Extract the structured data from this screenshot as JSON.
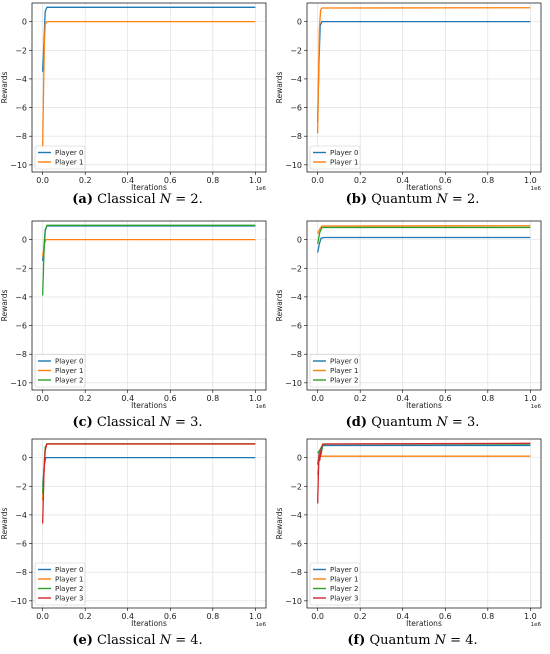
{
  "colors": {
    "player_0": "#1f77b4",
    "player_1": "#ff7f0e",
    "player_2": "#2ca02c",
    "player_3": "#d62728",
    "grid": "#dcdcdc"
  },
  "chart_data": [
    {
      "type": "line",
      "panel": "a",
      "caption": {
        "label": "(a)",
        "text": "Classical",
        "n": "N",
        "eq": " = 2."
      },
      "xlabel": "Iterations",
      "ylabel": "Rewards",
      "x_scale_note": "1e6",
      "xlim": [
        -0.05,
        1.05
      ],
      "ylim": [
        -10.5,
        1.3
      ],
      "xticks": [
        0.0,
        0.2,
        0.4,
        0.6,
        0.8,
        1.0
      ],
      "yticks": [
        -10,
        -8,
        -6,
        -4,
        -2,
        0
      ],
      "grid": true,
      "legend": "lower-left",
      "series": [
        {
          "name": "Player 0",
          "color": "#1f77b4",
          "points": [
            [
              0,
              -3.5
            ],
            [
              0.006,
              -1.5
            ],
            [
              0.012,
              0.7
            ],
            [
              0.02,
              1.0
            ],
            [
              1.0,
              1.0
            ]
          ]
        },
        {
          "name": "Player 1",
          "color": "#ff7f0e",
          "points": [
            [
              0,
              -8.8
            ],
            [
              0.004,
              -5.0
            ],
            [
              0.008,
              -1.5
            ],
            [
              0.012,
              -0.2
            ],
            [
              0.02,
              0.0
            ],
            [
              1.0,
              0.0
            ]
          ]
        }
      ]
    },
    {
      "type": "line",
      "panel": "b",
      "caption": {
        "label": "(b)",
        "text": "Quantum",
        "n": "N",
        "eq": " = 2."
      },
      "xlabel": "Iterations",
      "ylabel": "Rewards",
      "x_scale_note": "1e6",
      "xlim": [
        -0.05,
        1.05
      ],
      "ylim": [
        -10.5,
        1.3
      ],
      "xticks": [
        0.0,
        0.2,
        0.4,
        0.6,
        0.8,
        1.0
      ],
      "yticks": [
        -10,
        -8,
        -6,
        -4,
        -2,
        0
      ],
      "grid": true,
      "legend": "lower-left",
      "series": [
        {
          "name": "Player 0",
          "color": "#1f77b4",
          "points": [
            [
              0,
              -7.0
            ],
            [
              0.006,
              -3.0
            ],
            [
              0.012,
              -0.3
            ],
            [
              0.02,
              0.0
            ],
            [
              1.0,
              0.0
            ]
          ]
        },
        {
          "name": "Player 1",
          "color": "#ff7f0e",
          "points": [
            [
              0,
              -7.8
            ],
            [
              0.004,
              -4.0
            ],
            [
              0.008,
              -0.5
            ],
            [
              0.014,
              0.8
            ],
            [
              0.02,
              0.95
            ],
            [
              1.0,
              0.97
            ]
          ]
        }
      ]
    },
    {
      "type": "line",
      "panel": "c",
      "caption": {
        "label": "(c)",
        "text": "Classical",
        "n": "N",
        "eq": " = 3."
      },
      "xlabel": "Iterations",
      "ylabel": "Rewards",
      "x_scale_note": "1e6",
      "xlim": [
        -0.05,
        1.05
      ],
      "ylim": [
        -10.5,
        1.3
      ],
      "xticks": [
        0.0,
        0.2,
        0.4,
        0.6,
        0.8,
        1.0
      ],
      "yticks": [
        -10,
        -8,
        -6,
        -4,
        -2,
        0
      ],
      "grid": true,
      "legend": "lower-left",
      "series": [
        {
          "name": "Player 0",
          "color": "#1f77b4",
          "points": [
            [
              0,
              -1.5
            ],
            [
              0.006,
              -0.5
            ],
            [
              0.012,
              0.7
            ],
            [
              0.02,
              0.95
            ],
            [
              1.0,
              0.95
            ]
          ]
        },
        {
          "name": "Player 1",
          "color": "#ff7f0e",
          "points": [
            [
              0,
              -1.2
            ],
            [
              0.008,
              -0.3
            ],
            [
              0.015,
              0.0
            ],
            [
              1.0,
              0.0
            ]
          ]
        },
        {
          "name": "Player 2",
          "color": "#2ca02c",
          "points": [
            [
              0,
              -3.9
            ],
            [
              0.003,
              -2.5
            ],
            [
              0.006,
              -1.0
            ],
            [
              0.012,
              0.6
            ],
            [
              0.02,
              1.0
            ],
            [
              1.0,
              1.0
            ]
          ]
        }
      ]
    },
    {
      "type": "line",
      "panel": "d",
      "caption": {
        "label": "(d)",
        "text": "Quantum",
        "n": "N",
        "eq": " = 3."
      },
      "xlabel": "Iterations",
      "ylabel": "Rewards",
      "x_scale_note": "1e6",
      "xlim": [
        -0.05,
        1.05
      ],
      "ylim": [
        -10.5,
        1.3
      ],
      "xticks": [
        0.0,
        0.2,
        0.4,
        0.6,
        0.8,
        1.0
      ],
      "yticks": [
        -10,
        -8,
        -6,
        -4,
        -2,
        0
      ],
      "grid": true,
      "legend": "lower-left",
      "series": [
        {
          "name": "Player 0",
          "color": "#1f77b4",
          "points": [
            [
              0,
              -0.9
            ],
            [
              0.008,
              -0.3
            ],
            [
              0.016,
              0.1
            ],
            [
              0.03,
              0.15
            ],
            [
              1.0,
              0.15
            ]
          ]
        },
        {
          "name": "Player 1",
          "color": "#ff7f0e",
          "points": [
            [
              0,
              0.4
            ],
            [
              0.01,
              0.75
            ],
            [
              0.02,
              0.95
            ],
            [
              1.0,
              0.97
            ]
          ]
        },
        {
          "name": "Player 2",
          "color": "#2ca02c",
          "points": [
            [
              0,
              -0.3
            ],
            [
              0.01,
              0.5
            ],
            [
              0.02,
              0.85
            ],
            [
              1.0,
              0.85
            ]
          ]
        }
      ]
    },
    {
      "type": "line",
      "panel": "e",
      "caption": {
        "label": "(e)",
        "text": "Classical",
        "n": "N",
        "eq": " = 4."
      },
      "xlabel": "Iterations",
      "ylabel": "Rewards",
      "x_scale_note": "1e6",
      "xlim": [
        -0.05,
        1.05
      ],
      "ylim": [
        -10.5,
        1.3
      ],
      "xticks": [
        0.0,
        0.2,
        0.4,
        0.6,
        0.8,
        1.0
      ],
      "yticks": [
        -10,
        -8,
        -6,
        -4,
        -2,
        0
      ],
      "grid": true,
      "legend": "lower-left",
      "series": [
        {
          "name": "Player 0",
          "color": "#1f77b4",
          "points": [
            [
              0,
              -2.0
            ],
            [
              0.008,
              -0.5
            ],
            [
              0.015,
              0.0
            ],
            [
              1.0,
              0.0
            ]
          ]
        },
        {
          "name": "Player 1",
          "color": "#ff7f0e",
          "points": [
            [
              0,
              -3.0
            ],
            [
              0.006,
              -1.0
            ],
            [
              0.012,
              0.7
            ],
            [
              0.02,
              0.95
            ],
            [
              1.0,
              0.95
            ]
          ]
        },
        {
          "name": "Player 2",
          "color": "#2ca02c",
          "points": [
            [
              0,
              -2.5
            ],
            [
              0.006,
              -0.8
            ],
            [
              0.012,
              0.7
            ],
            [
              0.02,
              0.97
            ],
            [
              1.0,
              0.97
            ]
          ]
        },
        {
          "name": "Player 3",
          "color": "#d62728",
          "points": [
            [
              0,
              -4.6
            ],
            [
              0.003,
              -3.0
            ],
            [
              0.006,
              -1.2
            ],
            [
              0.012,
              0.5
            ],
            [
              0.02,
              0.95
            ],
            [
              1.0,
              0.95
            ]
          ]
        }
      ]
    },
    {
      "type": "line",
      "panel": "f",
      "caption": {
        "label": "(f)",
        "text": "Quantum",
        "n": "N",
        "eq": " = 4."
      },
      "xlabel": "Iterations",
      "ylabel": "Rewards",
      "x_scale_note": "1e6",
      "xlim": [
        -0.05,
        1.05
      ],
      "ylim": [
        -10.5,
        1.3
      ],
      "xticks": [
        0.0,
        0.2,
        0.4,
        0.6,
        0.8,
        1.0
      ],
      "yticks": [
        -10,
        -8,
        -6,
        -4,
        -2,
        0
      ],
      "grid": true,
      "legend": "lower-left",
      "series": [
        {
          "name": "Player 0",
          "color": "#1f77b4",
          "points": [
            [
              0,
              -0.5
            ],
            [
              0.01,
              0.5
            ],
            [
              0.02,
              0.8
            ],
            [
              0.03,
              0.85
            ],
            [
              1.0,
              0.85
            ]
          ]
        },
        {
          "name": "Player 1",
          "color": "#ff7f0e",
          "points": [
            [
              0,
              -1.2
            ],
            [
              0.008,
              0.0
            ],
            [
              0.016,
              0.1
            ],
            [
              1.0,
              0.1
            ]
          ]
        },
        {
          "name": "Player 2",
          "color": "#2ca02c",
          "points": [
            [
              0,
              0.3
            ],
            [
              0.008,
              0.5
            ],
            [
              0.016,
              0.2
            ],
            [
              0.024,
              0.85
            ],
            [
              0.035,
              0.95
            ],
            [
              1.0,
              0.95
            ]
          ]
        },
        {
          "name": "Player 3",
          "color": "#d62728",
          "points": [
            [
              0,
              -3.2
            ],
            [
              0.003,
              -1.5
            ],
            [
              0.006,
              0.2
            ],
            [
              0.01,
              -0.2
            ],
            [
              0.016,
              0.6
            ],
            [
              0.024,
              0.95
            ],
            [
              1.0,
              1.0
            ]
          ]
        }
      ]
    }
  ]
}
